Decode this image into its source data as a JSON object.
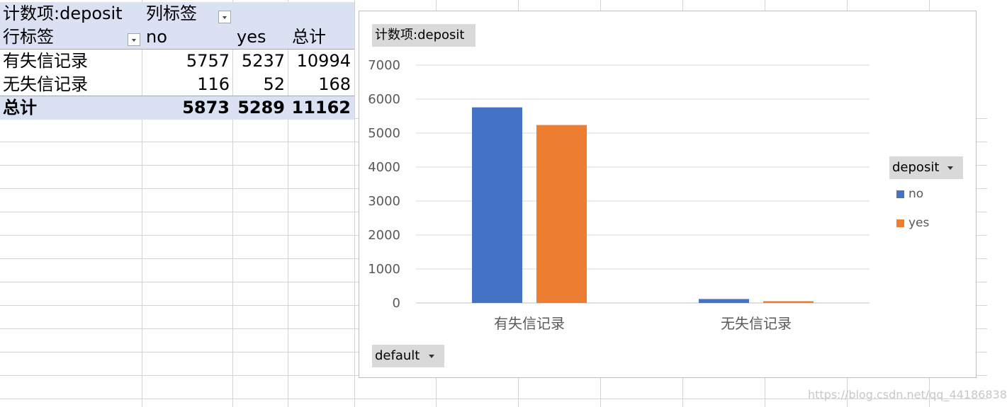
{
  "pivot": {
    "title": "计数项:deposit",
    "col_label": "列标签",
    "row_label": "行标签",
    "headers": [
      "no",
      "yes",
      "总计"
    ],
    "rows": [
      {
        "label": "有失信记录",
        "no": "5757",
        "yes": "5237",
        "total": "10994"
      },
      {
        "label": "无失信记录",
        "no": "116",
        "yes": "52",
        "total": "168"
      }
    ],
    "grand_total": {
      "label": "总计",
      "no": "5873",
      "yes": "5289",
      "total": "11162"
    }
  },
  "chart": {
    "value_field_button": "计数项:deposit",
    "legend_field_button": "deposit",
    "axis_field_button": "default",
    "colors": {
      "no": "#4472c4",
      "yes": "#ed7d31"
    }
  },
  "chart_data": {
    "type": "bar",
    "title": "",
    "categories": [
      "有失信记录",
      "无失信记录"
    ],
    "series": [
      {
        "name": "no",
        "values": [
          5757,
          116
        ]
      },
      {
        "name": "yes",
        "values": [
          5237,
          52
        ]
      }
    ],
    "ylim": [
      0,
      7000
    ],
    "yticks": [
      "0",
      "1000",
      "2000",
      "3000",
      "4000",
      "5000",
      "6000",
      "7000"
    ],
    "grid": true,
    "legend": "right"
  },
  "watermark": "https://blog.csdn.net/qq_44186838"
}
